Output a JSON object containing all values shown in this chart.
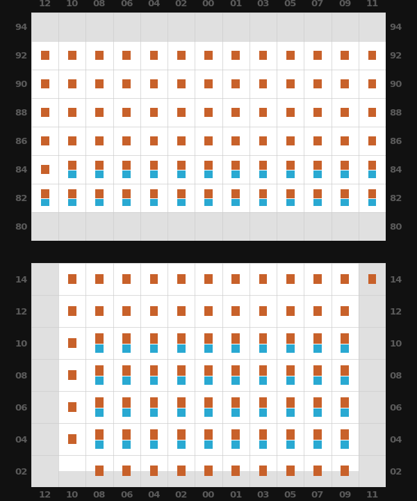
{
  "top_cols": [
    "12",
    "10",
    "08",
    "06",
    "04",
    "02",
    "00",
    "01",
    "03",
    "05",
    "07",
    "09",
    "11"
  ],
  "top_rows": [
    94,
    92,
    90,
    88,
    86,
    84,
    82,
    80
  ],
  "bot_cols": [
    "12",
    "10",
    "08",
    "06",
    "04",
    "02",
    "00",
    "01",
    "03",
    "05",
    "07",
    "09",
    "11"
  ],
  "bot_rows": [
    14,
    12,
    10,
    8,
    6,
    4,
    2
  ],
  "orange": "#C8612A",
  "blue": "#29A9D2",
  "gray_bg": "#E0E0E0",
  "white_bg": "#FFFFFF",
  "grid_line": "#CCCCCC",
  "bg_black": "#111111",
  "text_color": "#5A5A5A",
  "top_orange": {
    "94": [],
    "92": [
      "12",
      "10",
      "08",
      "06",
      "04",
      "02",
      "00",
      "01",
      "03",
      "05",
      "07",
      "09",
      "11"
    ],
    "90": [
      "12",
      "10",
      "08",
      "06",
      "04",
      "02",
      "00",
      "01",
      "03",
      "05",
      "07",
      "09",
      "11"
    ],
    "88": [
      "12",
      "10",
      "08",
      "06",
      "04",
      "02",
      "00",
      "01",
      "03",
      "05",
      "07",
      "09",
      "11"
    ],
    "86": [
      "12",
      "10",
      "08",
      "06",
      "04",
      "02",
      "00",
      "01",
      "03",
      "05",
      "07",
      "09",
      "11"
    ],
    "84": [
      "12",
      "10",
      "08",
      "06",
      "04",
      "02",
      "00",
      "01",
      "03",
      "05",
      "07",
      "09",
      "11"
    ],
    "82": [
      "12",
      "10",
      "08",
      "06",
      "04",
      "02",
      "00",
      "01",
      "03",
      "05",
      "07",
      "09",
      "11"
    ],
    "80": []
  },
  "top_blue": {
    "94": [],
    "92": [],
    "90": [],
    "88": [],
    "86": [],
    "84": [
      "10",
      "08",
      "06",
      "04",
      "02",
      "00",
      "01",
      "03",
      "05",
      "07",
      "09",
      "11"
    ],
    "82": [
      "12",
      "10",
      "08",
      "06",
      "04",
      "02",
      "00",
      "01",
      "03",
      "05",
      "07",
      "09",
      "11"
    ],
    "80": []
  },
  "bot_orange": {
    "14": [
      "10",
      "08",
      "06",
      "04",
      "02",
      "00",
      "01",
      "03",
      "05",
      "07",
      "09",
      "11"
    ],
    "12": [
      "10",
      "08",
      "06",
      "04",
      "02",
      "00",
      "01",
      "03",
      "05",
      "07",
      "09"
    ],
    "10": [
      "10",
      "08",
      "06",
      "04",
      "02",
      "00",
      "01",
      "03",
      "05",
      "07",
      "09"
    ],
    "8": [
      "10",
      "08",
      "06",
      "04",
      "02",
      "00",
      "01",
      "03",
      "05",
      "07",
      "09"
    ],
    "6": [
      "10",
      "08",
      "06",
      "04",
      "02",
      "00",
      "01",
      "03",
      "05",
      "07",
      "09"
    ],
    "4": [
      "10",
      "08",
      "06",
      "04",
      "02",
      "00",
      "01",
      "03",
      "05",
      "07",
      "09"
    ],
    "2": [
      "08",
      "06",
      "04",
      "02",
      "00",
      "01",
      "03",
      "05",
      "07",
      "09"
    ]
  },
  "bot_blue": {
    "14": [],
    "12": [],
    "10": [
      "08",
      "06",
      "04",
      "02",
      "00",
      "01",
      "03",
      "05",
      "07",
      "09"
    ],
    "8": [
      "08",
      "06",
      "04",
      "02",
      "00",
      "01",
      "03",
      "05",
      "07",
      "09"
    ],
    "6": [
      "08",
      "06",
      "04",
      "02",
      "00",
      "01",
      "03",
      "05",
      "07",
      "09"
    ],
    "4": [
      "08",
      "06",
      "04",
      "02",
      "00",
      "01",
      "03",
      "05",
      "07",
      "09"
    ],
    "2": []
  },
  "top_gray_cols_all": [],
  "bot_gray_col_left": "12",
  "bot_gray_col_right": "11"
}
